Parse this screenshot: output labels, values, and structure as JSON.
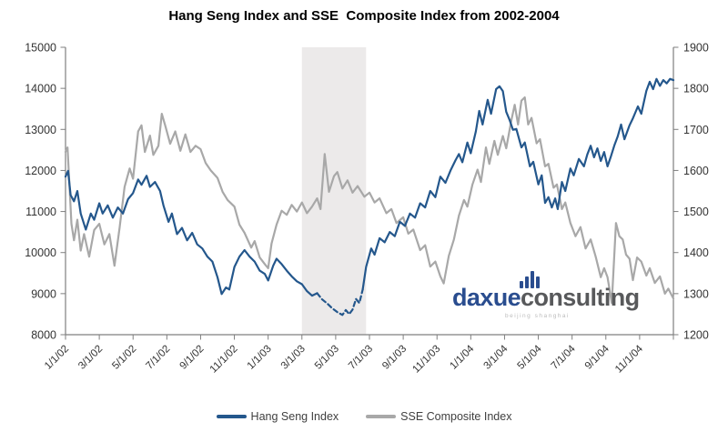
{
  "title": "Hang Seng Index and SSE  Composite Index from 2002-2004",
  "colors": {
    "hang_seng_blue": "#24578C",
    "sse_gray": "#A8A8A8",
    "axis_line": "#7f7f7f",
    "tick_label": "#333333",
    "shaded_region": "#ECEAEA",
    "watermark_blue": "#2A4D8F",
    "watermark_gray": "#58595B"
  },
  "watermark": {
    "brand_blue": "daxue",
    "brand_gray": "consulting",
    "subtitle": "beijing shanghai",
    "bars_icon_heights": [
      8,
      13,
      19,
      13
    ]
  },
  "legend": {
    "items": [
      {
        "label": "Hang Seng Index",
        "color": "#24578C"
      },
      {
        "label": "SSE Composite Index",
        "color": "#A8A8A8"
      }
    ]
  },
  "chart_data": {
    "type": "line",
    "title": "Hang Seng Index and SSE  Composite Index from 2002-2004",
    "grid": "off",
    "legend_position": "bottom",
    "x_axis": {
      "unit": "months since 1/1/02",
      "range": [
        0,
        36
      ],
      "tick_interval_months": 2,
      "tick_labels": [
        "1/1/02",
        "3/1/02",
        "5/1/02",
        "7/1/02",
        "9/1/02",
        "11/1/02",
        "1/1/03",
        "3/1/03",
        "5/1/03",
        "7/1/03",
        "9/1/03",
        "11/1/03",
        "1/1/04",
        "3/1/04",
        "5/1/04",
        "7/1/04",
        "9/1/04",
        "11/1/04"
      ]
    },
    "left_axis": {
      "series": "Hang Seng Index",
      "range": [
        8000,
        15000
      ],
      "ticks": [
        8000,
        9000,
        10000,
        11000,
        12000,
        13000,
        14000,
        15000
      ]
    },
    "right_axis": {
      "series": "SSE Composite Index",
      "range": [
        1200,
        1900
      ],
      "ticks": [
        1200,
        1300,
        1400,
        1500,
        1600,
        1700,
        1800,
        1900
      ]
    },
    "shaded_region": {
      "note": "vertical highlight band (SARS period)",
      "start_month": 14.0,
      "end_month": 17.8,
      "start_label": "3/1/03",
      "end_label": "~6/25/03",
      "color": "#ECEAEA"
    },
    "series": [
      {
        "name": "SSE Composite Index",
        "axis": "right",
        "color": "#A8A8A8",
        "points": [
          [
            0,
            1645
          ],
          [
            0.12,
            1656
          ],
          [
            0.35,
            1470
          ],
          [
            0.5,
            1430
          ],
          [
            0.7,
            1480
          ],
          [
            0.9,
            1405
          ],
          [
            1.1,
            1445
          ],
          [
            1.4,
            1390
          ],
          [
            1.7,
            1455
          ],
          [
            2.0,
            1470
          ],
          [
            2.3,
            1420
          ],
          [
            2.6,
            1445
          ],
          [
            2.9,
            1368
          ],
          [
            3.2,
            1460
          ],
          [
            3.5,
            1560
          ],
          [
            3.8,
            1605
          ],
          [
            4.0,
            1580
          ],
          [
            4.3,
            1695
          ],
          [
            4.5,
            1710
          ],
          [
            4.7,
            1645
          ],
          [
            5.0,
            1685
          ],
          [
            5.2,
            1638
          ],
          [
            5.5,
            1660
          ],
          [
            5.7,
            1738
          ],
          [
            5.9,
            1710
          ],
          [
            6.2,
            1665
          ],
          [
            6.5,
            1695
          ],
          [
            6.8,
            1648
          ],
          [
            7.1,
            1688
          ],
          [
            7.4,
            1645
          ],
          [
            7.7,
            1660
          ],
          [
            8.0,
            1652
          ],
          [
            8.3,
            1618
          ],
          [
            8.6,
            1600
          ],
          [
            9.0,
            1582
          ],
          [
            9.3,
            1548
          ],
          [
            9.6,
            1528
          ],
          [
            10.0,
            1512
          ],
          [
            10.3,
            1468
          ],
          [
            10.6,
            1448
          ],
          [
            11.0,
            1412
          ],
          [
            11.2,
            1428
          ],
          [
            11.5,
            1388
          ],
          [
            11.8,
            1372
          ],
          [
            12.0,
            1362
          ],
          [
            12.2,
            1422
          ],
          [
            12.5,
            1468
          ],
          [
            12.8,
            1502
          ],
          [
            13.1,
            1492
          ],
          [
            13.4,
            1516
          ],
          [
            13.7,
            1500
          ],
          [
            14.0,
            1522
          ],
          [
            14.3,
            1496
          ],
          [
            14.6,
            1512
          ],
          [
            14.9,
            1532
          ],
          [
            15.1,
            1506
          ],
          [
            15.35,
            1640
          ],
          [
            15.6,
            1548
          ],
          [
            15.9,
            1586
          ],
          [
            16.1,
            1596
          ],
          [
            16.4,
            1556
          ],
          [
            16.7,
            1576
          ],
          [
            17.0,
            1546
          ],
          [
            17.3,
            1562
          ],
          [
            17.7,
            1536
          ],
          [
            18.0,
            1546
          ],
          [
            18.3,
            1522
          ],
          [
            18.6,
            1532
          ],
          [
            19.0,
            1496
          ],
          [
            19.3,
            1506
          ],
          [
            19.6,
            1472
          ],
          [
            20.0,
            1486
          ],
          [
            20.3,
            1446
          ],
          [
            20.6,
            1456
          ],
          [
            21.0,
            1406
          ],
          [
            21.3,
            1418
          ],
          [
            21.6,
            1366
          ],
          [
            21.9,
            1378
          ],
          [
            22.2,
            1342
          ],
          [
            22.4,
            1325
          ],
          [
            22.7,
            1392
          ],
          [
            23.0,
            1432
          ],
          [
            23.3,
            1490
          ],
          [
            23.6,
            1528
          ],
          [
            23.8,
            1512
          ],
          [
            24.1,
            1566
          ],
          [
            24.4,
            1602
          ],
          [
            24.6,
            1572
          ],
          [
            24.9,
            1656
          ],
          [
            25.1,
            1616
          ],
          [
            25.4,
            1672
          ],
          [
            25.6,
            1638
          ],
          [
            25.9,
            1684
          ],
          [
            26.1,
            1654
          ],
          [
            26.4,
            1722
          ],
          [
            26.6,
            1760
          ],
          [
            26.8,
            1712
          ],
          [
            27.0,
            1770
          ],
          [
            27.2,
            1778
          ],
          [
            27.4,
            1712
          ],
          [
            27.6,
            1728
          ],
          [
            27.9,
            1666
          ],
          [
            28.1,
            1676
          ],
          [
            28.4,
            1610
          ],
          [
            28.6,
            1616
          ],
          [
            28.9,
            1558
          ],
          [
            29.1,
            1566
          ],
          [
            29.4,
            1506
          ],
          [
            29.6,
            1522
          ],
          [
            29.9,
            1472
          ],
          [
            30.2,
            1440
          ],
          [
            30.5,
            1462
          ],
          [
            30.8,
            1410
          ],
          [
            31.1,
            1432
          ],
          [
            31.4,
            1390
          ],
          [
            31.7,
            1340
          ],
          [
            31.9,
            1362
          ],
          [
            32.1,
            1340
          ],
          [
            32.35,
            1277
          ],
          [
            32.6,
            1472
          ],
          [
            32.8,
            1440
          ],
          [
            33.0,
            1432
          ],
          [
            33.2,
            1395
          ],
          [
            33.4,
            1385
          ],
          [
            33.6,
            1333
          ],
          [
            33.85,
            1388
          ],
          [
            34.1,
            1378
          ],
          [
            34.4,
            1344
          ],
          [
            34.6,
            1362
          ],
          [
            34.9,
            1326
          ],
          [
            35.2,
            1342
          ],
          [
            35.5,
            1300
          ],
          [
            35.7,
            1312
          ],
          [
            36.0,
            1288
          ]
        ]
      },
      {
        "name": "Hang Seng Index",
        "axis": "left",
        "color": "#24578C",
        "dash_between_months": [
          14.9,
          17.6
        ],
        "points": [
          [
            0,
            11850
          ],
          [
            0.15,
            11990
          ],
          [
            0.3,
            11400
          ],
          [
            0.5,
            11250
          ],
          [
            0.7,
            11500
          ],
          [
            0.9,
            10950
          ],
          [
            1.2,
            10560
          ],
          [
            1.5,
            10950
          ],
          [
            1.7,
            10800
          ],
          [
            2.0,
            11200
          ],
          [
            2.2,
            10950
          ],
          [
            2.5,
            11150
          ],
          [
            2.8,
            10850
          ],
          [
            3.1,
            11100
          ],
          [
            3.4,
            10950
          ],
          [
            3.7,
            11300
          ],
          [
            4.0,
            11450
          ],
          [
            4.3,
            11780
          ],
          [
            4.5,
            11650
          ],
          [
            4.8,
            11870
          ],
          [
            5.0,
            11600
          ],
          [
            5.3,
            11720
          ],
          [
            5.6,
            11500
          ],
          [
            5.8,
            11150
          ],
          [
            6.1,
            10750
          ],
          [
            6.3,
            10950
          ],
          [
            6.6,
            10450
          ],
          [
            6.9,
            10600
          ],
          [
            7.2,
            10300
          ],
          [
            7.5,
            10480
          ],
          [
            7.8,
            10200
          ],
          [
            8.1,
            10100
          ],
          [
            8.4,
            9900
          ],
          [
            8.7,
            9780
          ],
          [
            9.0,
            9400
          ],
          [
            9.25,
            8990
          ],
          [
            9.5,
            9150
          ],
          [
            9.7,
            9100
          ],
          [
            10.0,
            9650
          ],
          [
            10.3,
            9900
          ],
          [
            10.6,
            10060
          ],
          [
            10.9,
            9900
          ],
          [
            11.2,
            9780
          ],
          [
            11.5,
            9560
          ],
          [
            11.8,
            9480
          ],
          [
            12.0,
            9320
          ],
          [
            12.3,
            9680
          ],
          [
            12.5,
            9850
          ],
          [
            12.8,
            9720
          ],
          [
            13.1,
            9560
          ],
          [
            13.4,
            9420
          ],
          [
            13.7,
            9300
          ],
          [
            14.0,
            9230
          ],
          [
            14.3,
            9060
          ],
          [
            14.6,
            8950
          ],
          [
            14.9,
            9010
          ],
          [
            15.2,
            8860
          ],
          [
            15.5,
            8760
          ],
          [
            15.8,
            8640
          ],
          [
            16.1,
            8550
          ],
          [
            16.4,
            8480
          ],
          [
            16.6,
            8600
          ],
          [
            16.8,
            8500
          ],
          [
            17.0,
            8610
          ],
          [
            17.2,
            8870
          ],
          [
            17.4,
            8770
          ],
          [
            17.6,
            9100
          ],
          [
            17.8,
            9650
          ],
          [
            18.1,
            10100
          ],
          [
            18.3,
            9950
          ],
          [
            18.6,
            10350
          ],
          [
            18.9,
            10250
          ],
          [
            19.2,
            10500
          ],
          [
            19.5,
            10400
          ],
          [
            19.8,
            10750
          ],
          [
            20.1,
            10650
          ],
          [
            20.4,
            10950
          ],
          [
            20.7,
            10850
          ],
          [
            21.0,
            11200
          ],
          [
            21.3,
            11100
          ],
          [
            21.6,
            11500
          ],
          [
            21.9,
            11350
          ],
          [
            22.2,
            11850
          ],
          [
            22.5,
            11700
          ],
          [
            22.8,
            12000
          ],
          [
            23.1,
            12250
          ],
          [
            23.3,
            12400
          ],
          [
            23.5,
            12200
          ],
          [
            23.8,
            12680
          ],
          [
            24.0,
            12420
          ],
          [
            24.3,
            12950
          ],
          [
            24.5,
            13450
          ],
          [
            24.7,
            13120
          ],
          [
            25.0,
            13720
          ],
          [
            25.2,
            13380
          ],
          [
            25.5,
            13980
          ],
          [
            25.7,
            14050
          ],
          [
            25.9,
            13930
          ],
          [
            26.1,
            13430
          ],
          [
            26.3,
            13230
          ],
          [
            26.5,
            12990
          ],
          [
            26.7,
            13010
          ],
          [
            27.0,
            12560
          ],
          [
            27.2,
            12680
          ],
          [
            27.5,
            12100
          ],
          [
            27.7,
            12210
          ],
          [
            28.0,
            11660
          ],
          [
            28.2,
            11880
          ],
          [
            28.4,
            11210
          ],
          [
            28.6,
            11350
          ],
          [
            28.8,
            11100
          ],
          [
            29.0,
            11320
          ],
          [
            29.15,
            11060
          ],
          [
            29.4,
            11720
          ],
          [
            29.6,
            11500
          ],
          [
            29.9,
            12050
          ],
          [
            30.1,
            11880
          ],
          [
            30.4,
            12280
          ],
          [
            30.7,
            12100
          ],
          [
            30.9,
            12390
          ],
          [
            31.1,
            12600
          ],
          [
            31.3,
            12320
          ],
          [
            31.5,
            12540
          ],
          [
            31.7,
            12230
          ],
          [
            31.9,
            12450
          ],
          [
            32.1,
            12100
          ],
          [
            32.3,
            12340
          ],
          [
            32.5,
            12610
          ],
          [
            32.7,
            12830
          ],
          [
            32.9,
            13120
          ],
          [
            33.1,
            12760
          ],
          [
            33.4,
            13100
          ],
          [
            33.6,
            13270
          ],
          [
            33.9,
            13560
          ],
          [
            34.1,
            13380
          ],
          [
            34.4,
            13940
          ],
          [
            34.6,
            14160
          ],
          [
            34.8,
            13980
          ],
          [
            35.0,
            14230
          ],
          [
            35.2,
            14060
          ],
          [
            35.4,
            14200
          ],
          [
            35.6,
            14120
          ],
          [
            35.8,
            14230
          ],
          [
            36.0,
            14200
          ]
        ]
      }
    ]
  }
}
